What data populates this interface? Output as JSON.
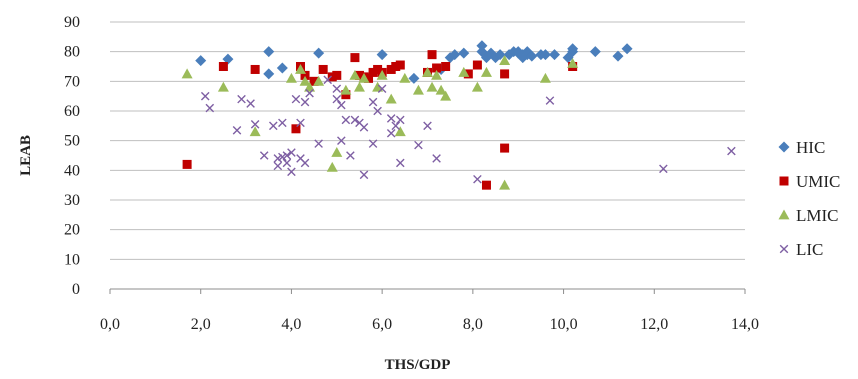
{
  "chart_data": {
    "type": "scatter",
    "xlabel": "THS/GDP",
    "ylabel": "LEAB",
    "xlim": [
      0,
      14
    ],
    "ylim": [
      0,
      90
    ],
    "xticks": [
      0,
      2,
      4,
      6,
      8,
      10,
      12,
      14
    ],
    "xtick_labels": [
      "0,0",
      "2,0",
      "4,0",
      "6,0",
      "8,0",
      "10,0",
      "12,0",
      "14,0"
    ],
    "yticks": [
      0,
      10,
      20,
      30,
      40,
      50,
      60,
      70,
      80,
      90
    ],
    "ytick_labels": [
      "0",
      "10",
      "20",
      "30",
      "40",
      "50",
      "60",
      "70",
      "80",
      "90"
    ],
    "grid": "horizontal",
    "legend_position": "right",
    "series": [
      {
        "name": "HIC",
        "marker": "diamond",
        "color": "#4a7ebb",
        "points": [
          [
            2.0,
            77
          ],
          [
            2.6,
            77.5
          ],
          [
            3.5,
            80
          ],
          [
            3.5,
            72.5
          ],
          [
            3.8,
            74.5
          ],
          [
            4.6,
            79.5
          ],
          [
            6.0,
            79
          ],
          [
            6.7,
            71
          ],
          [
            7.3,
            74
          ],
          [
            7.5,
            78
          ],
          [
            7.6,
            79
          ],
          [
            7.8,
            79.5
          ],
          [
            8.2,
            80
          ],
          [
            8.2,
            82
          ],
          [
            8.3,
            78
          ],
          [
            8.4,
            79.5
          ],
          [
            8.5,
            78
          ],
          [
            8.6,
            79
          ],
          [
            8.8,
            79
          ],
          [
            8.9,
            80
          ],
          [
            9.0,
            79.5
          ],
          [
            9.0,
            80
          ],
          [
            9.1,
            78
          ],
          [
            9.1,
            79
          ],
          [
            9.2,
            80
          ],
          [
            9.2,
            79
          ],
          [
            9.3,
            78.5
          ],
          [
            9.5,
            79
          ],
          [
            9.6,
            79
          ],
          [
            9.8,
            79
          ],
          [
            10.1,
            78
          ],
          [
            10.2,
            80
          ],
          [
            10.2,
            81
          ],
          [
            10.7,
            80
          ],
          [
            11.2,
            78.5
          ],
          [
            11.4,
            81
          ]
        ]
      },
      {
        "name": "UMIC",
        "marker": "square",
        "color": "#c00000",
        "points": [
          [
            1.7,
            42
          ],
          [
            2.5,
            75
          ],
          [
            3.2,
            74
          ],
          [
            4.1,
            54
          ],
          [
            4.2,
            75
          ],
          [
            4.3,
            72
          ],
          [
            4.5,
            70
          ],
          [
            4.7,
            74
          ],
          [
            4.9,
            71.5
          ],
          [
            5.0,
            72
          ],
          [
            5.2,
            65.5
          ],
          [
            5.4,
            78
          ],
          [
            5.5,
            72
          ],
          [
            5.6,
            71.5
          ],
          [
            5.7,
            71
          ],
          [
            5.8,
            73
          ],
          [
            5.9,
            74
          ],
          [
            6.0,
            73
          ],
          [
            6.2,
            74
          ],
          [
            6.3,
            75
          ],
          [
            6.4,
            75.5
          ],
          [
            7.0,
            73
          ],
          [
            7.1,
            79
          ],
          [
            7.2,
            74.5
          ],
          [
            7.4,
            75
          ],
          [
            7.9,
            72.5
          ],
          [
            8.1,
            75.5
          ],
          [
            8.3,
            35
          ],
          [
            8.7,
            72.5
          ],
          [
            8.7,
            47.5
          ],
          [
            10.2,
            75
          ]
        ]
      },
      {
        "name": "LMIC",
        "marker": "triangle",
        "color": "#9bbb59",
        "points": [
          [
            1.7,
            72.5
          ],
          [
            2.5,
            68
          ],
          [
            3.2,
            53
          ],
          [
            4.0,
            71
          ],
          [
            4.2,
            74
          ],
          [
            4.3,
            70
          ],
          [
            4.4,
            68
          ],
          [
            4.6,
            70
          ],
          [
            4.9,
            41
          ],
          [
            5.0,
            46
          ],
          [
            5.2,
            67
          ],
          [
            5.4,
            72
          ],
          [
            5.5,
            68
          ],
          [
            5.6,
            71
          ],
          [
            5.9,
            68
          ],
          [
            6.0,
            72
          ],
          [
            6.2,
            64
          ],
          [
            6.4,
            53
          ],
          [
            6.5,
            71
          ],
          [
            6.8,
            67
          ],
          [
            7.0,
            73
          ],
          [
            7.1,
            68
          ],
          [
            7.2,
            72
          ],
          [
            7.3,
            67
          ],
          [
            7.4,
            65
          ],
          [
            7.8,
            73
          ],
          [
            8.1,
            68
          ],
          [
            8.3,
            73
          ],
          [
            8.7,
            77
          ],
          [
            8.7,
            35
          ],
          [
            9.6,
            71
          ],
          [
            10.2,
            76
          ]
        ]
      },
      {
        "name": "LIC",
        "marker": "x",
        "color": "#7e5fa3",
        "points": [
          [
            2.1,
            65
          ],
          [
            2.2,
            61
          ],
          [
            2.8,
            53.5
          ],
          [
            2.9,
            64
          ],
          [
            3.1,
            62.5
          ],
          [
            3.2,
            55.5
          ],
          [
            3.4,
            45
          ],
          [
            3.6,
            55
          ],
          [
            3.7,
            44
          ],
          [
            3.7,
            41.5
          ],
          [
            3.8,
            56
          ],
          [
            3.8,
            44.5
          ],
          [
            3.9,
            45
          ],
          [
            3.9,
            42.5
          ],
          [
            4.0,
            46
          ],
          [
            4.0,
            39.5
          ],
          [
            4.1,
            64
          ],
          [
            4.2,
            44
          ],
          [
            4.2,
            56
          ],
          [
            4.3,
            42.5
          ],
          [
            4.3,
            63
          ],
          [
            4.4,
            66
          ],
          [
            4.6,
            49
          ],
          [
            4.8,
            70.5
          ],
          [
            5.0,
            67.5
          ],
          [
            5.0,
            64
          ],
          [
            5.1,
            62
          ],
          [
            5.1,
            50
          ],
          [
            5.2,
            57
          ],
          [
            5.3,
            45
          ],
          [
            5.4,
            57
          ],
          [
            5.5,
            56
          ],
          [
            5.6,
            54.5
          ],
          [
            5.6,
            38.5
          ],
          [
            5.8,
            49
          ],
          [
            5.8,
            63
          ],
          [
            5.9,
            60
          ],
          [
            6.0,
            67.5
          ],
          [
            6.2,
            57.5
          ],
          [
            6.2,
            52.5
          ],
          [
            6.3,
            55
          ],
          [
            6.4,
            57
          ],
          [
            6.4,
            42.5
          ],
          [
            6.8,
            48.5
          ],
          [
            7.0,
            55
          ],
          [
            7.2,
            44
          ],
          [
            8.1,
            37
          ],
          [
            9.7,
            63.5
          ],
          [
            12.2,
            40.5
          ],
          [
            13.7,
            46.5
          ]
        ]
      }
    ]
  }
}
